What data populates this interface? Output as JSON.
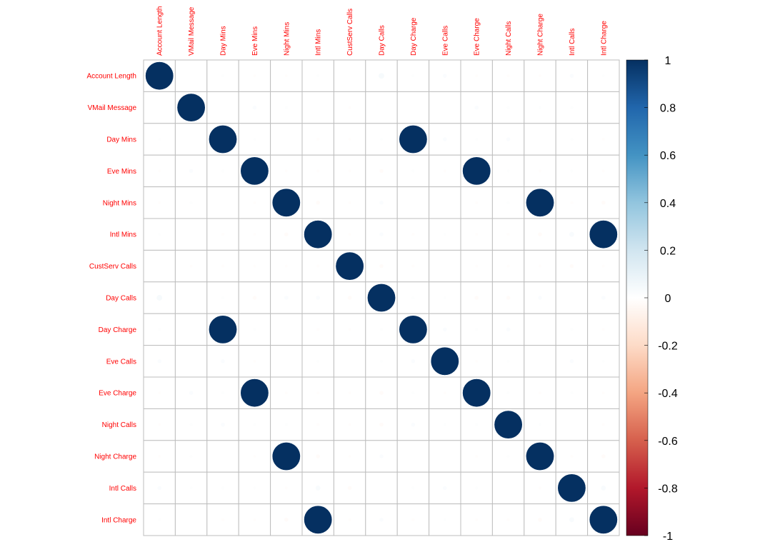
{
  "chart_data": {
    "type": "heatmap",
    "style": "corrplot-circle",
    "variables": [
      "Account Length",
      "VMail Message",
      "Day Mins",
      "Eve Mins",
      "Night Mins",
      "Intl Mins",
      "CustServ Calls",
      "Day Calls",
      "Day Charge",
      "Eve Calls",
      "Eve Charge",
      "Night Calls",
      "Night Charge",
      "Intl Calls",
      "Intl Charge"
    ],
    "matrix": [
      [
        1,
        0,
        0.01,
        -0.01,
        -0.01,
        0.01,
        0,
        0.04,
        0.01,
        0.02,
        -0.01,
        -0.01,
        -0.01,
        0.02,
        0.01
      ],
      [
        0,
        1,
        0,
        0.02,
        0.01,
        0,
        -0.01,
        0,
        0,
        0,
        0.02,
        0.01,
        0.01,
        0.01,
        0
      ],
      [
        0.01,
        0,
        1,
        0.01,
        0,
        -0.01,
        -0.01,
        0.01,
        1,
        0.02,
        0.01,
        0.02,
        0,
        0.01,
        -0.01
      ],
      [
        -0.01,
        0.02,
        0.01,
        1,
        -0.01,
        -0.01,
        -0.01,
        -0.02,
        0.01,
        -0.01,
        1,
        0.01,
        -0.01,
        0.01,
        -0.01
      ],
      [
        -0.01,
        0.01,
        0,
        -0.01,
        1,
        -0.02,
        -0.01,
        0.02,
        0,
        0,
        -0.01,
        0.01,
        1,
        -0.01,
        -0.02
      ],
      [
        0.01,
        0,
        -0.01,
        -0.01,
        -0.02,
        1,
        -0.01,
        0.02,
        -0.01,
        0.01,
        -0.01,
        -0.01,
        -0.02,
        0.03,
        1
      ],
      [
        0,
        -0.01,
        -0.01,
        -0.01,
        -0.01,
        -0.01,
        1,
        -0.02,
        -0.01,
        0,
        -0.01,
        -0.01,
        -0.01,
        -0.02,
        -0.01
      ],
      [
        0.04,
        0,
        0.01,
        -0.02,
        0.02,
        0.02,
        -0.02,
        1,
        0.01,
        0.01,
        -0.02,
        -0.02,
        0.02,
        0,
        0.02
      ],
      [
        0.01,
        0,
        1,
        0.01,
        0,
        -0.01,
        -0.01,
        0.01,
        1,
        0.02,
        0.01,
        0.02,
        0,
        0.01,
        -0.01
      ],
      [
        0.02,
        0,
        0.02,
        -0.01,
        0,
        0.01,
        0,
        0.01,
        0.02,
        1,
        -0.01,
        0.01,
        0,
        0.02,
        0.01
      ],
      [
        -0.01,
        0.02,
        0.01,
        1,
        -0.01,
        -0.01,
        -0.01,
        -0.02,
        0.01,
        -0.01,
        1,
        0.01,
        -0.01,
        0.01,
        -0.01
      ],
      [
        -0.01,
        0.01,
        0.02,
        0.01,
        0.01,
        -0.01,
        -0.01,
        -0.02,
        0.02,
        0.01,
        0.01,
        1,
        0.01,
        0,
        -0.01
      ],
      [
        -0.01,
        0.01,
        0,
        -0.01,
        1,
        -0.02,
        -0.01,
        0.02,
        0,
        0,
        -0.01,
        0.01,
        1,
        -0.01,
        -0.02
      ],
      [
        0.02,
        0.01,
        0.01,
        0.01,
        -0.01,
        0.03,
        -0.02,
        0,
        0.01,
        0.02,
        0.01,
        0,
        -0.01,
        1,
        0.03
      ],
      [
        0.01,
        0,
        -0.01,
        -0.01,
        -0.02,
        1,
        -0.01,
        0.02,
        -0.01,
        0.01,
        -0.01,
        -0.01,
        -0.02,
        0.03,
        1
      ]
    ],
    "colorbar": {
      "range": [
        -1,
        1
      ],
      "ticks": [
        "1",
        "0.8",
        "0.6",
        "0.4",
        "0.2",
        "0",
        "-0.2",
        "-0.4",
        "-0.6",
        "-0.8",
        "-1"
      ],
      "colors": [
        "#67001F",
        "#B2182B",
        "#D6604D",
        "#F4A582",
        "#FDDBC7",
        "#FFFFFF",
        "#D1E5F0",
        "#92C5DE",
        "#4393C3",
        "#2166AC",
        "#053061"
      ]
    },
    "label_color": "#FF0000",
    "grid": true,
    "legend_position": "right"
  }
}
